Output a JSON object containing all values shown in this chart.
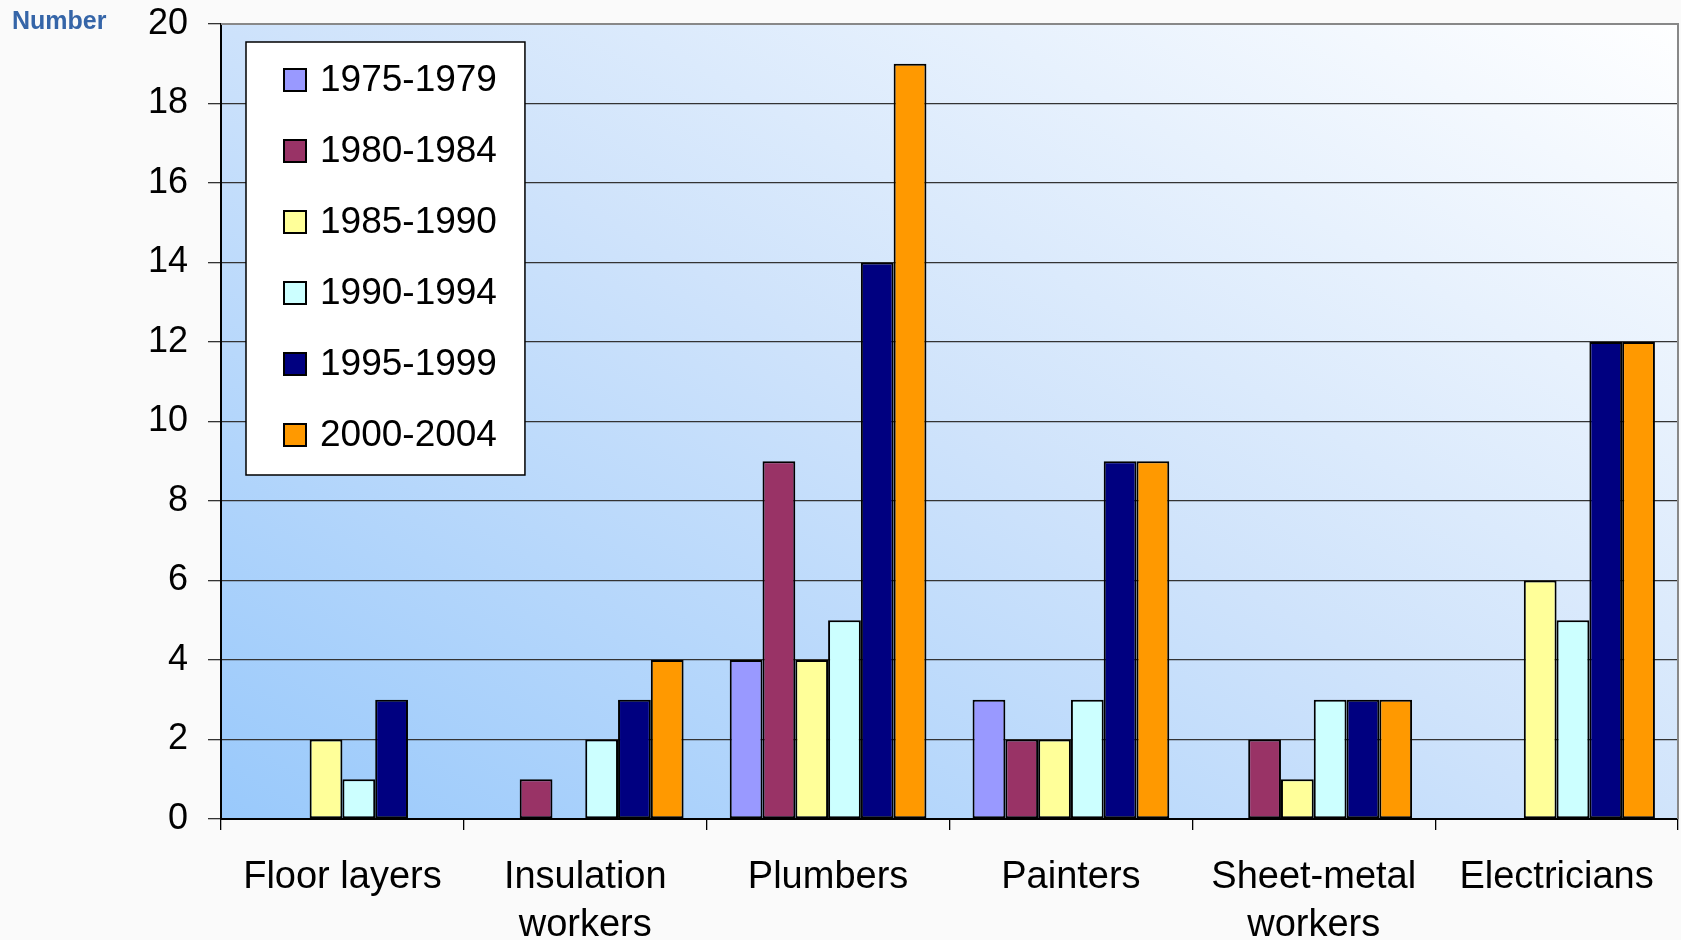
{
  "chart_data": {
    "type": "bar",
    "ylabel": "Number",
    "categories": [
      "Floor layers",
      "Insulation workers",
      "Plumbers",
      "Painters",
      "Sheet-metal workers",
      "Electricians"
    ],
    "series": [
      {
        "name": "1975-1979",
        "color": "#9999ff",
        "values": [
          0,
          0,
          4,
          3,
          0,
          0
        ]
      },
      {
        "name": "1980-1984",
        "color": "#993366",
        "values": [
          0,
          1,
          9,
          2,
          2,
          0
        ]
      },
      {
        "name": "1985-1990",
        "color": "#ffff99",
        "values": [
          2,
          0,
          4,
          2,
          1,
          6
        ]
      },
      {
        "name": "1990-1994",
        "color": "#ccffff",
        "values": [
          1,
          2,
          5,
          3,
          3,
          5
        ]
      },
      {
        "name": "1995-1999",
        "color": "#000080",
        "values": [
          3,
          3,
          14,
          9,
          3,
          12
        ]
      },
      {
        "name": "2000-2004",
        "color": "#ff9900",
        "values": [
          0,
          4,
          19,
          9,
          3,
          12
        ]
      }
    ],
    "ylim": [
      0,
      20
    ],
    "yticks": [
      0,
      2,
      4,
      6,
      8,
      10,
      12,
      14,
      16,
      18,
      20
    ],
    "grid": "y",
    "legend": "top left"
  }
}
